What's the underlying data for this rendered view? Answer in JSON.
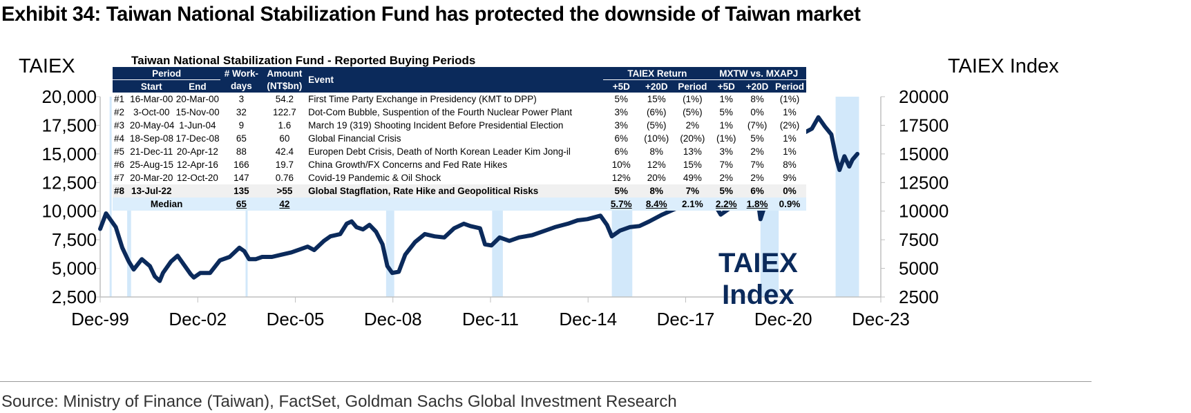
{
  "title": "Exhibit 34: Taiwan National Stabilization Fund has protected the downside of Taiwan market",
  "source": "Source: Ministry of Finance (Taiwan), FactSet, Goldman Sachs Global Investment Research",
  "annotation": {
    "line1": "TAIEX",
    "line2": "Index"
  },
  "colors": {
    "line": "#0b2a5b",
    "shade": "#cde6fa",
    "header": "#0b2a5b",
    "median": "#dceefc"
  },
  "table": {
    "title": "Taiwan National Stabilization Fund - Reported Buying Periods",
    "headers": {
      "period": "Period",
      "start": "Start",
      "end": "End",
      "workdays1": "# Work-",
      "workdays2": "days",
      "amount1": "Amount",
      "amount2": "(NT$bn)",
      "event": "Event",
      "taiex_return": "TAIEX Return",
      "mxtw": "MXTW vs. MXAPJ",
      "p5d": "+5D",
      "p20d": "+20D",
      "period_col": "Period"
    },
    "rows": [
      {
        "id": "#1",
        "start": "16-Mar-00",
        "end": "20-Mar-00",
        "days": "3",
        "amount": "54.2",
        "event": "First Time Party Exchange in Presidency (KMT to DPP)",
        "t5": "5%",
        "t20": "15%",
        "tp": "(1%)",
        "m5": "1%",
        "m20": "8%",
        "mp": "(1%)"
      },
      {
        "id": "#2",
        "start": "3-Oct-00",
        "end": "15-Nov-00",
        "days": "32",
        "amount": "122.7",
        "event": "Dot-Com Bubble, Suspention of the Fourth Nuclear Power Plant",
        "t5": "3%",
        "t20": "(6%)",
        "tp": "(5%)",
        "m5": "5%",
        "m20": "0%",
        "mp": "1%"
      },
      {
        "id": "#3",
        "start": "20-May-04",
        "end": "1-Jun-04",
        "days": "9",
        "amount": "1.6",
        "event": "March 19 (319) Shooting Incident Before Presidential Election",
        "t5": "3%",
        "t20": "(5%)",
        "tp": "2%",
        "m5": "1%",
        "m20": "(7%)",
        "mp": "(2%)"
      },
      {
        "id": "#4",
        "start": "18-Sep-08",
        "end": "17-Dec-08",
        "days": "65",
        "amount": "60",
        "event": "Global Financial Crisis",
        "t5": "6%",
        "t20": "(10%)",
        "tp": "(20%)",
        "m5": "(1%)",
        "m20": "5%",
        "mp": "1%"
      },
      {
        "id": "#5",
        "start": "21-Dec-11",
        "end": "20-Apr-12",
        "days": "88",
        "amount": "42.4",
        "event": "Europen Debt Crisis, Death of North Korean Leader Kim Jong-il",
        "t5": "6%",
        "t20": "8%",
        "tp": "13%",
        "m5": "3%",
        "m20": "2%",
        "mp": "1%"
      },
      {
        "id": "#6",
        "start": "25-Aug-15",
        "end": "12-Apr-16",
        "days": "166",
        "amount": "19.7",
        "event": "China Growth/FX Concerns and Fed Rate Hikes",
        "t5": "10%",
        "t20": "12%",
        "tp": "15%",
        "m5": "7%",
        "m20": "7%",
        "mp": "8%"
      },
      {
        "id": "#7",
        "start": "20-Mar-20",
        "end": "12-Oct-20",
        "days": "147",
        "amount": "0.76",
        "event": "Covid-19 Pandemic & Oil Shock",
        "t5": "12%",
        "t20": "20%",
        "tp": "49%",
        "m5": "2%",
        "m20": "2%",
        "mp": "9%"
      },
      {
        "id": "#8",
        "start": "13-Jul-22",
        "end": "",
        "days": "135",
        "amount": ">55",
        "event": "Global Stagflation, Rate Hike and Geopolitical Risks",
        "t5": "5%",
        "t20": "8%",
        "tp": "7%",
        "m5": "5%",
        "m20": "6%",
        "mp": "0%"
      }
    ],
    "median": {
      "label": "Median",
      "days": "65",
      "amount": "42",
      "t5": "5.7%",
      "t20": "8.4%",
      "tp": "2.1%",
      "m5": "2.2%",
      "m20": "1.8%",
      "mp": "0.9%"
    }
  },
  "chart_data": {
    "type": "line",
    "title": "Exhibit 34: Taiwan National Stabilization Fund has protected the downside of Taiwan market",
    "ylabel_left": "TAIEX",
    "ylabel_right": "TAIEX Index",
    "y_left": {
      "ticks": [
        "20,000",
        "17,500",
        "15,000",
        "12,500",
        "10,000",
        "7,500",
        "5,000",
        "2,500"
      ],
      "range": [
        2500,
        20000
      ]
    },
    "y_right": {
      "ticks": [
        "20000",
        "17500",
        "15000",
        "12500",
        "10000",
        "7500",
        "5000",
        "2500"
      ],
      "range": [
        2500,
        20000
      ]
    },
    "x_ticks": [
      "Dec-99",
      "Dec-02",
      "Dec-05",
      "Dec-08",
      "Dec-11",
      "Dec-14",
      "Dec-17",
      "Dec-20",
      "Dec-23"
    ],
    "x_range": [
      1999.92,
      2023.92
    ],
    "series": [
      {
        "name": "TAIEX Index",
        "x": [
          1999.92,
          2000.1,
          2000.2,
          2000.4,
          2000.6,
          2000.8,
          2000.95,
          2001.2,
          2001.45,
          2001.6,
          2001.75,
          2001.85,
          2002.1,
          2002.3,
          2002.5,
          2002.7,
          2002.8,
          2003.0,
          2003.3,
          2003.6,
          2003.9,
          2004.2,
          2004.35,
          2004.5,
          2004.7,
          2004.9,
          2005.2,
          2005.5,
          2005.8,
          2006.1,
          2006.3,
          2006.5,
          2006.8,
          2007.0,
          2007.3,
          2007.5,
          2007.65,
          2007.8,
          2008.0,
          2008.2,
          2008.4,
          2008.6,
          2008.75,
          2008.9,
          2009.1,
          2009.3,
          2009.6,
          2009.9,
          2010.2,
          2010.5,
          2010.8,
          2011.1,
          2011.3,
          2011.6,
          2011.75,
          2011.95,
          2012.2,
          2012.5,
          2012.8,
          2013.2,
          2013.6,
          2013.9,
          2014.3,
          2014.6,
          2014.9,
          2015.3,
          2015.5,
          2015.65,
          2015.9,
          2016.2,
          2016.5,
          2016.8,
          2017.2,
          2017.6,
          2017.9,
          2018.3,
          2018.6,
          2018.85,
          2019.0,
          2019.4,
          2019.7,
          2020.0,
          2020.1,
          2020.22,
          2020.4,
          2020.6,
          2020.8,
          2021.0,
          2021.2,
          2021.4,
          2021.6,
          2021.8,
          2022.0,
          2022.2,
          2022.4,
          2022.55,
          2022.65,
          2022.8,
          2022.95,
          2023.05,
          2023.2
        ],
        "y": [
          8450,
          9800,
          9400,
          8600,
          6800,
          5600,
          4900,
          5800,
          5200,
          4300,
          3900,
          4600,
          5600,
          6100,
          5300,
          4500,
          4200,
          4600,
          4600,
          5700,
          6000,
          6800,
          6500,
          5800,
          5800,
          6000,
          6000,
          6200,
          6400,
          6700,
          6900,
          6600,
          7400,
          7800,
          8000,
          8900,
          9100,
          8600,
          8400,
          8800,
          8200,
          7100,
          5200,
          4600,
          4700,
          6200,
          7300,
          8000,
          7800,
          7700,
          8500,
          8900,
          8700,
          8500,
          7100,
          7000,
          7700,
          7400,
          7700,
          7900,
          8300,
          8600,
          8900,
          9200,
          9300,
          9600,
          8800,
          7800,
          8300,
          8600,
          8700,
          9100,
          9700,
          10200,
          10500,
          10900,
          11000,
          10400,
          9700,
          10500,
          10900,
          11600,
          11800,
          9300,
          10900,
          12600,
          13100,
          14500,
          16300,
          17300,
          16900,
          17200,
          18200,
          17400,
          16700,
          14600,
          13600,
          14800,
          13900,
          14500,
          15000
        ]
      }
    ],
    "shaded_periods": [
      {
        "label": "#1",
        "start": 2000.21,
        "end": 2000.22
      },
      {
        "label": "#2",
        "start": 2000.75,
        "end": 2000.87
      },
      {
        "label": "#3",
        "start": 2004.39,
        "end": 2004.42
      },
      {
        "label": "#4",
        "start": 2008.71,
        "end": 2008.96
      },
      {
        "label": "#5",
        "start": 2011.97,
        "end": 2012.3
      },
      {
        "label": "#6",
        "start": 2015.65,
        "end": 2016.28
      },
      {
        "label": "#7",
        "start": 2020.22,
        "end": 2020.78
      },
      {
        "label": "#8",
        "start": 2022.53,
        "end": 2023.25
      }
    ]
  }
}
